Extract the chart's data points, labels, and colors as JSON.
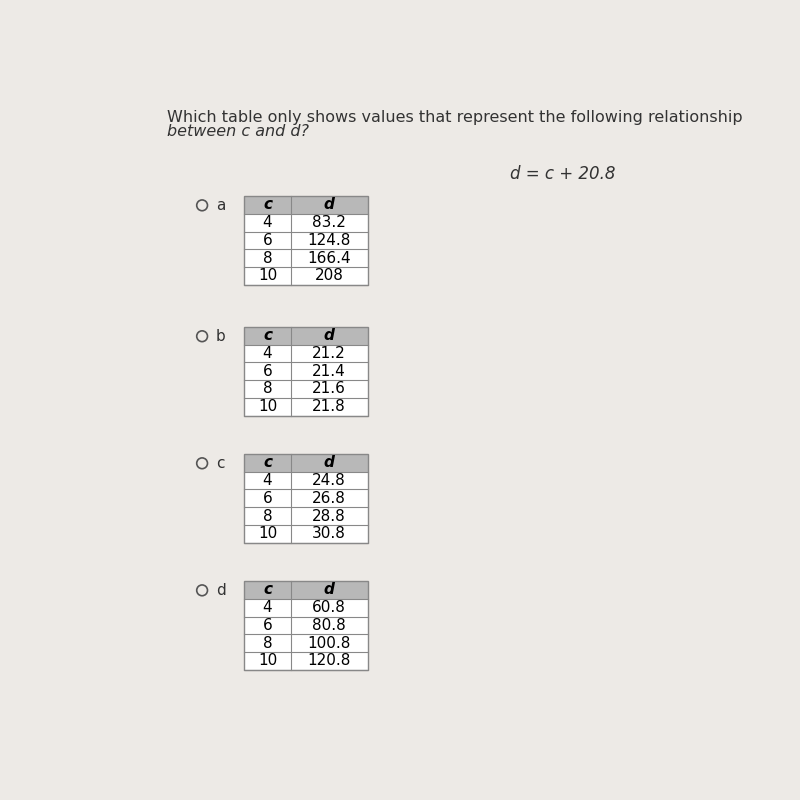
{
  "question_line1": "Which table only shows values that represent the following relationship",
  "question_line2": "between c and d?",
  "formula": "d = c + 20.8",
  "options": [
    "a",
    "b",
    "c",
    "d"
  ],
  "tables": [
    {
      "label": "a",
      "headers": [
        "c",
        "d"
      ],
      "rows": [
        [
          "4",
          "83.2"
        ],
        [
          "6",
          "124.8"
        ],
        [
          "8",
          "166.4"
        ],
        [
          "10",
          "208"
        ]
      ]
    },
    {
      "label": "b",
      "headers": [
        "c",
        "d"
      ],
      "rows": [
        [
          "4",
          "21.2"
        ],
        [
          "6",
          "21.4"
        ],
        [
          "8",
          "21.6"
        ],
        [
          "10",
          "21.8"
        ]
      ]
    },
    {
      "label": "c",
      "headers": [
        "c",
        "d"
      ],
      "rows": [
        [
          "4",
          "24.8"
        ],
        [
          "6",
          "26.8"
        ],
        [
          "8",
          "28.8"
        ],
        [
          "10",
          "30.8"
        ]
      ]
    },
    {
      "label": "d",
      "headers": [
        "c",
        "d"
      ],
      "rows": [
        [
          "4",
          "60.8"
        ],
        [
          "6",
          "80.8"
        ],
        [
          "8",
          "100.8"
        ],
        [
          "10",
          "120.8"
        ]
      ]
    }
  ],
  "bg_color": "#edeae6",
  "table_header_bg": "#b8b8b8",
  "table_row_bg": "#ffffff",
  "table_border_color": "#888888",
  "question_fontsize": 11.5,
  "formula_fontsize": 12,
  "table_fontsize": 11,
  "label_fontsize": 11
}
